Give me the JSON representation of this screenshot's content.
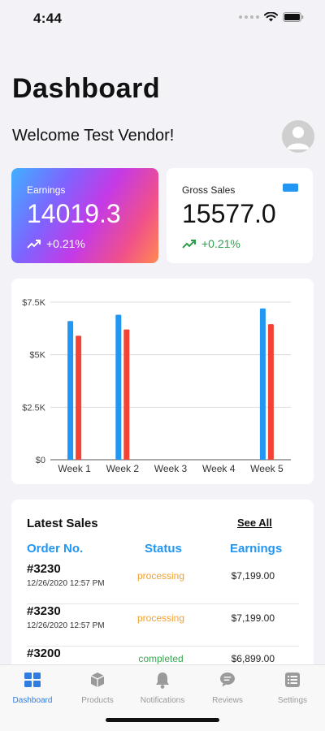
{
  "status_bar": {
    "time": "4:44"
  },
  "header": {
    "title": "Dashboard",
    "welcome": "Welcome Test Vendor!"
  },
  "earnings_card": {
    "label": "Earnings",
    "value": "14019.3",
    "change": "+0.21%"
  },
  "gross_card": {
    "label": "Gross Sales",
    "value": "15577.0",
    "change": "+0.21%"
  },
  "colors": {
    "accent": "#2196f3",
    "series_blue": "#2196f3",
    "series_red": "#f44336",
    "processing": "#f0a030",
    "completed": "#3aa84f",
    "tab_active": "#2f7de1"
  },
  "chart_data": {
    "type": "bar",
    "categories": [
      "Week 1",
      "Week 2",
      "Week 3",
      "Week 4",
      "Week 5"
    ],
    "series": [
      {
        "values": [
          6600,
          6900,
          0,
          0,
          7200
        ],
        "color": "#2196f3"
      },
      {
        "values": [
          5900,
          6200,
          0,
          0,
          6450
        ],
        "color": "#f44336"
      }
    ],
    "ylim": [
      0,
      7500
    ],
    "yticks": [
      0,
      2500,
      5000,
      7500
    ],
    "ytick_labels": [
      "$0",
      "$2.5K",
      "$5K",
      "$7.5K"
    ],
    "grid": true
  },
  "latest_sales": {
    "title": "Latest Sales",
    "see_all": "See All",
    "columns": [
      "Order No.",
      "Status",
      "Earnings"
    ],
    "rows": [
      {
        "order": "#3230",
        "date": "12/26/2020 12:57 PM",
        "status": "processing",
        "earnings": "$7,199.00"
      },
      {
        "order": "#3230",
        "date": "12/26/2020 12:57 PM",
        "status": "processing",
        "earnings": "$7,199.00"
      },
      {
        "order": "#3200",
        "date": "",
        "status": "completed",
        "earnings": "$6,899.00"
      }
    ]
  },
  "tabs": [
    {
      "label": "Dashboard",
      "icon": "dashboard-icon",
      "active": true
    },
    {
      "label": "Products",
      "icon": "box-icon",
      "active": false
    },
    {
      "label": "Notifications",
      "icon": "bell-icon",
      "active": false
    },
    {
      "label": "Reviews",
      "icon": "chat-bubble-icon",
      "active": false
    },
    {
      "label": "Settings",
      "icon": "list-icon",
      "active": false
    }
  ]
}
